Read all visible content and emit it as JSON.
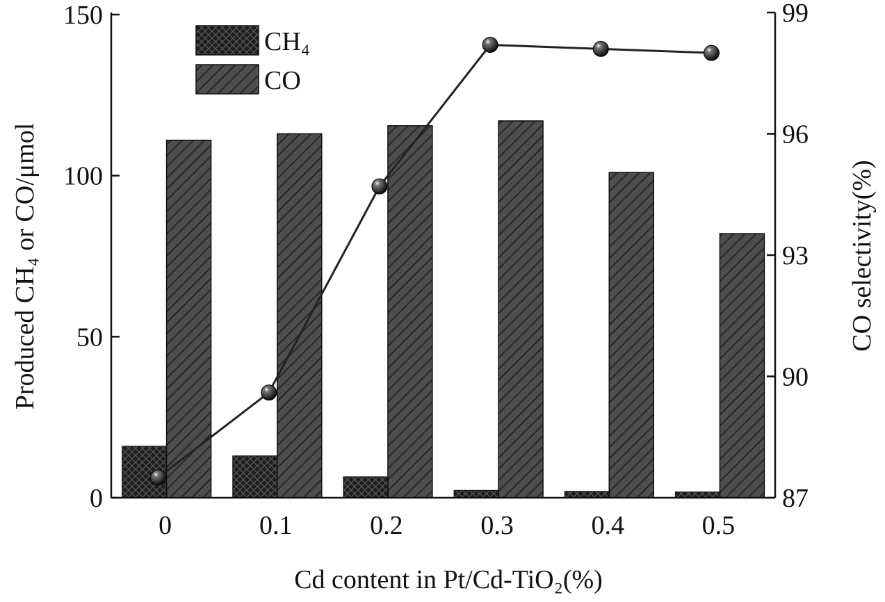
{
  "chart_data": {
    "type": "bar",
    "categories": [
      "0",
      "0.1",
      "0.2",
      "0.3",
      "0.4",
      "0.5"
    ],
    "series": [
      {
        "name": "CH₄",
        "axis": "left",
        "kind": "bar",
        "pattern": "crosshatch",
        "values": [
          16,
          13,
          6.5,
          2.3,
          2,
          1.8
        ]
      },
      {
        "name": "CO",
        "axis": "left",
        "kind": "bar",
        "pattern": "diagonal-hatch",
        "values": [
          111,
          113,
          115.5,
          117,
          101,
          82
        ]
      },
      {
        "axis": "right",
        "kind": "line",
        "marker": "sphere",
        "values": [
          87.5,
          89.6,
          94.7,
          98.2,
          98.1,
          98.0
        ]
      }
    ],
    "xlabel": "Cd content in Pt/Cd-TiO₂(%)",
    "ylabel_left": "Produced CH₄ or CO/μmol",
    "ylabel_right": "CO selectivity(%)",
    "ylim_left": [
      0,
      150
    ],
    "ylim_right": [
      87,
      99
    ],
    "yticks_left": [
      "0",
      "50",
      "100",
      "150"
    ],
    "yticks_right": [
      "87",
      "90",
      "93",
      "96",
      "99"
    ],
    "legend_position": "top-left",
    "grid": false,
    "colors": {
      "ch4": "#1a1a1a",
      "co": "#555555",
      "line": "#222222",
      "axis": "#111111"
    }
  }
}
